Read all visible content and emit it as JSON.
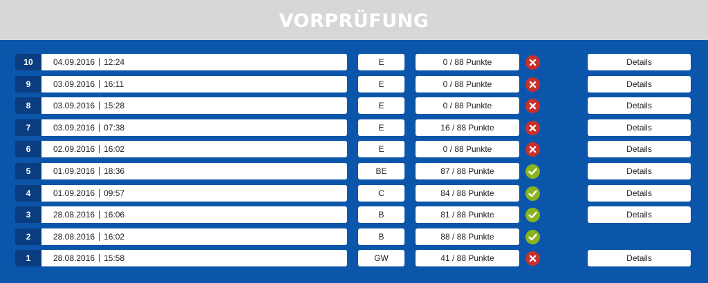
{
  "header": {
    "title": "VORPRÜFUNG"
  },
  "colors": {
    "fail": "#c9302c",
    "pass": "#8ab31f",
    "number_bg": "#0a3d7f",
    "background": "#0b56aa"
  },
  "rows": [
    {
      "number": "10",
      "date": "04.09.2016",
      "time": "12:24",
      "class": "E",
      "score": "0 / 88 Punkte",
      "result": "fail",
      "result_icon": "x-icon",
      "details_label": "Details"
    },
    {
      "number": "9",
      "date": "03.09.2016",
      "time": "16:11",
      "class": "E",
      "score": "0 / 88 Punkte",
      "result": "fail",
      "result_icon": "x-icon",
      "details_label": "Details"
    },
    {
      "number": "8",
      "date": "03.09.2016",
      "time": "15:28",
      "class": "E",
      "score": "0 / 88 Punkte",
      "result": "fail",
      "result_icon": "x-icon",
      "details_label": "Details"
    },
    {
      "number": "7",
      "date": "03.09.2016",
      "time": "07:38",
      "class": "E",
      "score": "16 / 88 Punkte",
      "result": "fail",
      "result_icon": "x-icon",
      "details_label": "Details"
    },
    {
      "number": "6",
      "date": "02.09.2016",
      "time": "16:02",
      "class": "E",
      "score": "0 / 88 Punkte",
      "result": "fail",
      "result_icon": "x-icon",
      "details_label": "Details"
    },
    {
      "number": "5",
      "date": "01.09.2016",
      "time": "18:36",
      "class": "BE",
      "score": "87 / 88 Punkte",
      "result": "pass",
      "result_icon": "check-icon",
      "details_label": "Details"
    },
    {
      "number": "4",
      "date": "01.09.2016",
      "time": "09:57",
      "class": "C",
      "score": "84 / 88 Punkte",
      "result": "pass",
      "result_icon": "check-icon",
      "details_label": "Details"
    },
    {
      "number": "3",
      "date": "28.08.2016",
      "time": "16:06",
      "class": "B",
      "score": "81 / 88 Punkte",
      "result": "pass",
      "result_icon": "check-icon",
      "details_label": "Details"
    },
    {
      "number": "2",
      "date": "28.08.2016",
      "time": "16:02",
      "class": "B",
      "score": "88 / 88 Punkte",
      "result": "pass",
      "result_icon": "check-icon",
      "details_label": null
    },
    {
      "number": "1",
      "date": "28.08.2016",
      "time": "15:58",
      "class": "GW",
      "score": "41 / 88 Punkte",
      "result": "fail",
      "result_icon": "x-icon",
      "details_label": "Details"
    }
  ]
}
